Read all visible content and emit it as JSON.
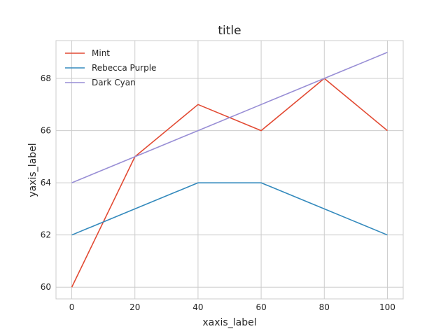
{
  "chart_data": {
    "type": "line",
    "title": "title",
    "xlabel": "xaxis_label",
    "ylabel": "yaxis_label",
    "x": [
      0,
      20,
      40,
      60,
      80,
      100
    ],
    "series": [
      {
        "name": "Mint",
        "color": "#e24a33",
        "values": [
          60,
          65,
          67,
          66,
          68,
          66
        ]
      },
      {
        "name": "Rebecca Purple",
        "color": "#348abd",
        "values": [
          62,
          63,
          64,
          64,
          63,
          62
        ]
      },
      {
        "name": "Dark Cyan",
        "color": "#988ed5",
        "values": [
          64,
          65,
          66,
          67,
          68,
          69
        ]
      }
    ],
    "xlim": [
      -5,
      105
    ],
    "ylim": [
      59.55,
      69.45
    ],
    "xticks": [
      0,
      20,
      40,
      60,
      80,
      100
    ],
    "yticks": [
      60,
      62,
      64,
      66,
      68
    ],
    "xtick_labels": [
      "0",
      "20",
      "40",
      "60",
      "80",
      "100"
    ],
    "ytick_labels": [
      "60",
      "62",
      "64",
      "66",
      "68"
    ],
    "grid": true,
    "legend_position": "top-left"
  }
}
